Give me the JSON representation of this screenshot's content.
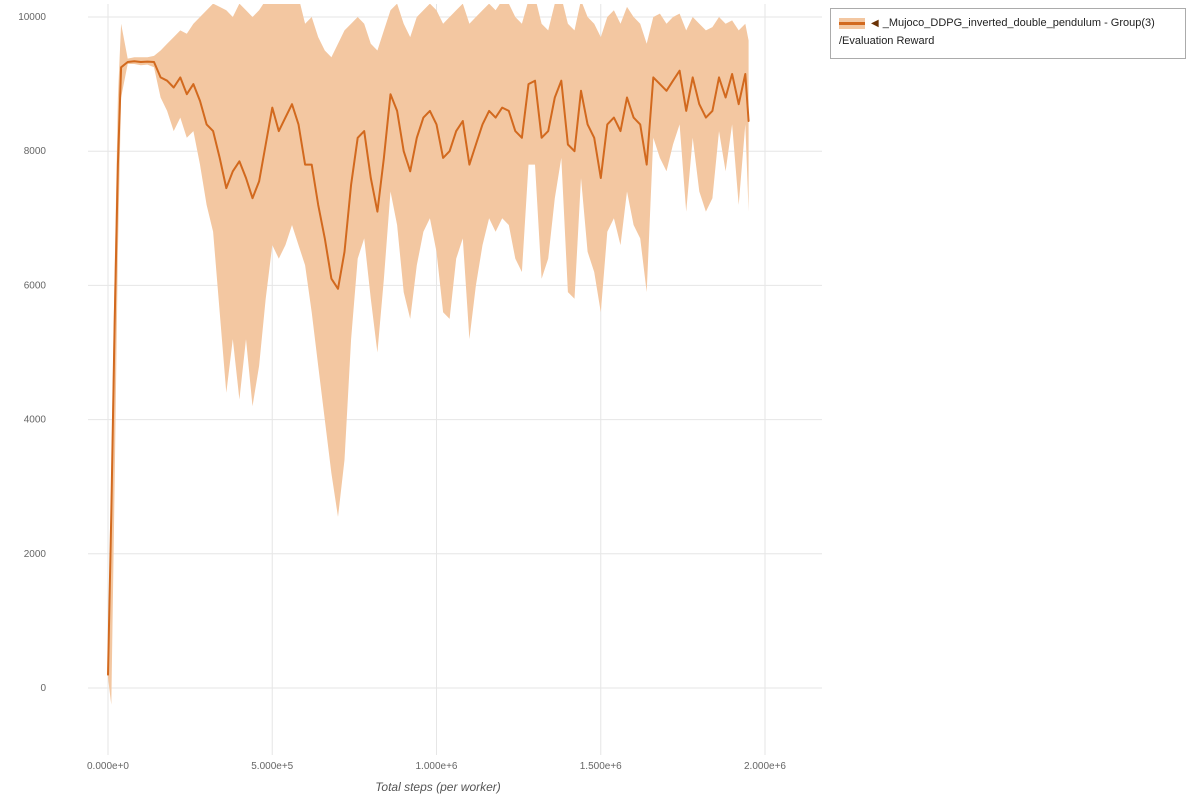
{
  "legend": {
    "collapse_icon": "◀",
    "series_label": "_Mujoco_DDPG_inverted_double_pendulum - Group(3)",
    "metric_label": "/Evaluation Reward"
  },
  "axes": {
    "x_title": "Total steps (per worker)"
  },
  "colors": {
    "line": "#d2691e",
    "band": "#f3c7a1",
    "grid": "#e6e6e6",
    "tick_text": "#666666",
    "legend_border": "#ababab",
    "collapse_icon": "#6b3305"
  },
  "chart_data": {
    "type": "line",
    "title": "",
    "xlabel": "Total steps (per worker)",
    "ylabel": "",
    "legend_position": "top-right",
    "grid": true,
    "xlim": [
      -70000,
      2170000
    ],
    "ylim": [
      -1000,
      10300
    ],
    "x_ticks": [
      {
        "v": 0,
        "label": "0.000e+0"
      },
      {
        "v": 500000,
        "label": "5.000e+5"
      },
      {
        "v": 1000000,
        "label": "1.000e+6"
      },
      {
        "v": 1500000,
        "label": "1.500e+6"
      },
      {
        "v": 2000000,
        "label": "2.000e+6"
      }
    ],
    "y_ticks": [
      {
        "v": 0,
        "label": "0"
      },
      {
        "v": 2000,
        "label": "2000"
      },
      {
        "v": 4000,
        "label": "4000"
      },
      {
        "v": 6000,
        "label": "6000"
      },
      {
        "v": 8000,
        "label": "8000"
      },
      {
        "v": 10000,
        "label": "10000"
      }
    ],
    "series": [
      {
        "name": "_Mujoco_DDPG_inverted_double_pendulum - Group(3) /Evaluation Reward",
        "band": "min-max",
        "points": [
          [
            0,
            200,
            150,
            260
          ],
          [
            10000,
            2600,
            -250,
            3200
          ],
          [
            20000,
            5400,
            3000,
            6200
          ],
          [
            30000,
            7800,
            6500,
            8800
          ],
          [
            40000,
            9250,
            8800,
            9900
          ],
          [
            60000,
            9330,
            9300,
            9380
          ],
          [
            80000,
            9340,
            9300,
            9400
          ],
          [
            100000,
            9330,
            9280,
            9400
          ],
          [
            120000,
            9335,
            9290,
            9400
          ],
          [
            140000,
            9330,
            9250,
            9420
          ],
          [
            160000,
            9100,
            8800,
            9500
          ],
          [
            180000,
            9050,
            8600,
            9600
          ],
          [
            200000,
            8950,
            8300,
            9700
          ],
          [
            220000,
            9100,
            8500,
            9800
          ],
          [
            240000,
            8850,
            8200,
            9750
          ],
          [
            260000,
            9000,
            8300,
            9900
          ],
          [
            280000,
            8750,
            7800,
            10000
          ],
          [
            300000,
            8400,
            7200,
            10100
          ],
          [
            320000,
            8300,
            6800,
            10200
          ],
          [
            340000,
            7900,
            5600,
            10150
          ],
          [
            360000,
            7450,
            4400,
            10100
          ],
          [
            380000,
            7700,
            5200,
            10000
          ],
          [
            400000,
            7850,
            4300,
            10200
          ],
          [
            420000,
            7600,
            5200,
            10100
          ],
          [
            440000,
            7300,
            4200,
            10000
          ],
          [
            460000,
            7550,
            4800,
            10100
          ],
          [
            480000,
            8100,
            5800,
            10250
          ],
          [
            500000,
            8650,
            6600,
            10300
          ],
          [
            520000,
            8300,
            6400,
            10250
          ],
          [
            540000,
            8500,
            6600,
            10300
          ],
          [
            560000,
            8700,
            6900,
            10350
          ],
          [
            580000,
            8400,
            6600,
            10300
          ],
          [
            600000,
            7800,
            6300,
            9900
          ],
          [
            620000,
            7800,
            5600,
            10000
          ],
          [
            640000,
            7200,
            4800,
            9700
          ],
          [
            660000,
            6700,
            4000,
            9500
          ],
          [
            680000,
            6100,
            3200,
            9400
          ],
          [
            700000,
            5950,
            2550,
            9600
          ],
          [
            720000,
            6500,
            3400,
            9800
          ],
          [
            740000,
            7500,
            5200,
            9900
          ],
          [
            760000,
            8200,
            6400,
            10000
          ],
          [
            780000,
            8300,
            6700,
            9900
          ],
          [
            800000,
            7600,
            5800,
            9600
          ],
          [
            820000,
            7100,
            5000,
            9500
          ],
          [
            840000,
            7900,
            6100,
            9800
          ],
          [
            860000,
            8850,
            7400,
            10100
          ],
          [
            880000,
            8600,
            6900,
            10200
          ],
          [
            900000,
            8000,
            5900,
            9900
          ],
          [
            920000,
            7700,
            5500,
            9700
          ],
          [
            940000,
            8200,
            6300,
            10000
          ],
          [
            960000,
            8500,
            6800,
            10100
          ],
          [
            980000,
            8600,
            7000,
            10200
          ],
          [
            1000000,
            8400,
            6500,
            10100
          ],
          [
            1020000,
            7900,
            5600,
            9900
          ],
          [
            1040000,
            8000,
            5500,
            10000
          ],
          [
            1060000,
            8300,
            6400,
            10100
          ],
          [
            1080000,
            8450,
            6700,
            10200
          ],
          [
            1100000,
            7800,
            5200,
            9900
          ],
          [
            1120000,
            8100,
            6000,
            10000
          ],
          [
            1140000,
            8400,
            6600,
            10100
          ],
          [
            1160000,
            8600,
            7000,
            10200
          ],
          [
            1180000,
            8500,
            6800,
            10100
          ],
          [
            1200000,
            8650,
            7000,
            10250
          ],
          [
            1220000,
            8600,
            6900,
            10200
          ],
          [
            1240000,
            8300,
            6400,
            10000
          ],
          [
            1260000,
            8200,
            6200,
            9900
          ],
          [
            1280000,
            9000,
            7800,
            10250
          ],
          [
            1300000,
            9050,
            7800,
            10300
          ],
          [
            1320000,
            8200,
            6100,
            9900
          ],
          [
            1340000,
            8300,
            6400,
            9800
          ],
          [
            1360000,
            8800,
            7300,
            10200
          ],
          [
            1380000,
            9050,
            7900,
            10300
          ],
          [
            1400000,
            8100,
            5900,
            9900
          ],
          [
            1420000,
            8000,
            5800,
            9800
          ],
          [
            1440000,
            8900,
            7600,
            10250
          ],
          [
            1460000,
            8400,
            6500,
            10000
          ],
          [
            1480000,
            8200,
            6200,
            9900
          ],
          [
            1500000,
            7600,
            5600,
            9700
          ],
          [
            1520000,
            8400,
            6800,
            10000
          ],
          [
            1540000,
            8500,
            7000,
            10100
          ],
          [
            1560000,
            8300,
            6600,
            9900
          ],
          [
            1580000,
            8800,
            7400,
            10150
          ],
          [
            1600000,
            8500,
            6900,
            10000
          ],
          [
            1620000,
            8400,
            6700,
            9900
          ],
          [
            1640000,
            7800,
            5900,
            9600
          ],
          [
            1660000,
            9100,
            8200,
            10000
          ],
          [
            1680000,
            9000,
            7900,
            10050
          ],
          [
            1700000,
            8900,
            7700,
            9900
          ],
          [
            1720000,
            9050,
            8100,
            10000
          ],
          [
            1740000,
            9200,
            8400,
            10050
          ],
          [
            1760000,
            8600,
            7100,
            9800
          ],
          [
            1780000,
            9100,
            8200,
            10000
          ],
          [
            1800000,
            8700,
            7400,
            9900
          ],
          [
            1820000,
            8500,
            7100,
            9800
          ],
          [
            1840000,
            8600,
            7300,
            9850
          ],
          [
            1860000,
            9100,
            8300,
            10000
          ],
          [
            1880000,
            8800,
            7700,
            9900
          ],
          [
            1900000,
            9150,
            8400,
            9950
          ],
          [
            1920000,
            8700,
            7200,
            9800
          ],
          [
            1940000,
            9150,
            8400,
            9900
          ],
          [
            1950000,
            8450,
            7100,
            9650
          ]
        ]
      }
    ]
  }
}
